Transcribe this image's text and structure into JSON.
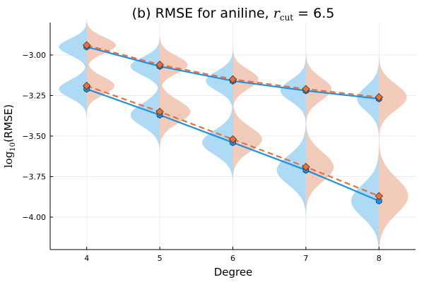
{
  "chart_data": {
    "type": "violin-line",
    "title": {
      "prefix": "(b) RMSE for aniline, ",
      "var": "r",
      "sub": "cut",
      "suffix": " = 6.5"
    },
    "xlabel": "Degree",
    "ylabel": {
      "pre": "log",
      "sub": "10",
      "post": "(RMSE)"
    },
    "xlim": [
      3.5,
      8.5
    ],
    "ylim": [
      -4.2,
      -2.8
    ],
    "xticks": [
      4,
      5,
      6,
      7,
      8
    ],
    "yticks": [
      -3.0,
      -3.25,
      -3.5,
      -3.75,
      -4.0
    ],
    "ytick_labels": [
      "−3.00",
      "−3.25",
      "−3.50",
      "−3.75",
      "−4.00"
    ],
    "grid": true,
    "colors": {
      "blue_fill": "#a6d6f5",
      "orange_fill": "#f2c5b3",
      "blue_line": "#1e90e0",
      "orange_line": "#e0733f",
      "grid": "#ebebeb"
    },
    "series": [
      {
        "name": "upper-blue",
        "side": "left",
        "style": "solid",
        "x": [
          4,
          5,
          6,
          7,
          8
        ],
        "y": [
          -2.95,
          -3.07,
          -3.16,
          -3.22,
          -3.27
        ],
        "spread": [
          0.05,
          0.055,
          0.06,
          0.065,
          0.075
        ],
        "width": [
          0.38,
          0.4,
          0.37,
          0.35,
          0.3
        ]
      },
      {
        "name": "upper-orange",
        "side": "right",
        "style": "dashed",
        "x": [
          4,
          5,
          6,
          7,
          8
        ],
        "y": [
          -2.94,
          -3.06,
          -3.15,
          -3.21,
          -3.26
        ],
        "spread": [
          0.05,
          0.055,
          0.06,
          0.07,
          0.08
        ],
        "width": [
          0.4,
          0.38,
          0.35,
          0.35,
          0.38
        ]
      },
      {
        "name": "lower-blue",
        "side": "left",
        "style": "solid",
        "x": [
          4,
          5,
          6,
          7,
          8
        ],
        "y": [
          -3.21,
          -3.37,
          -3.54,
          -3.71,
          -3.9
        ],
        "spread": [
          0.055,
          0.07,
          0.075,
          0.09,
          0.1
        ],
        "width": [
          0.38,
          0.4,
          0.42,
          0.4,
          0.38
        ]
      },
      {
        "name": "lower-orange",
        "side": "right",
        "style": "dashed",
        "x": [
          4,
          5,
          6,
          7,
          8
        ],
        "y": [
          -3.19,
          -3.35,
          -3.52,
          -3.69,
          -3.87
        ],
        "spread": [
          0.055,
          0.07,
          0.075,
          0.09,
          0.11
        ],
        "width": [
          0.38,
          0.42,
          0.4,
          0.38,
          0.4
        ]
      }
    ]
  }
}
